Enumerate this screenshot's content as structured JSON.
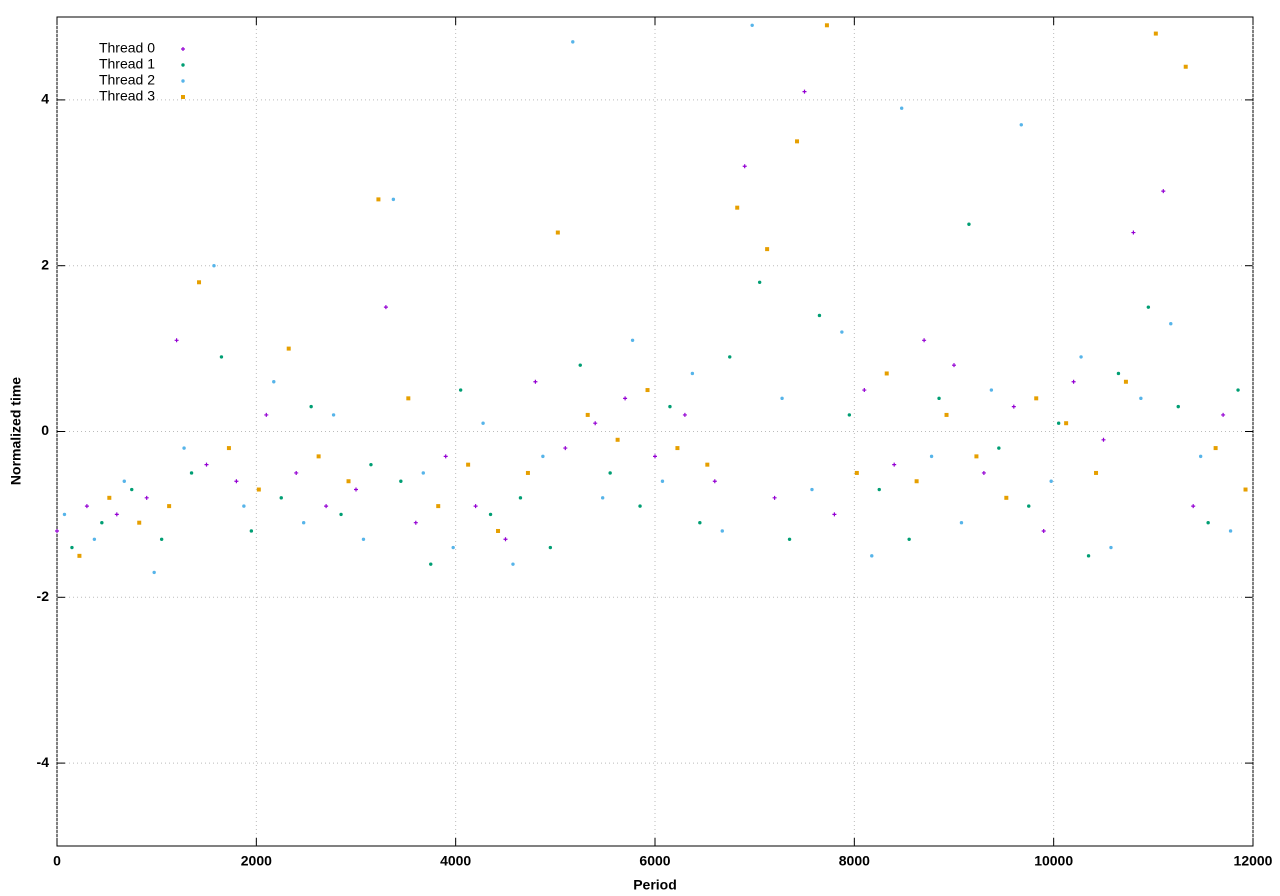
{
  "chart_data": {
    "type": "scatter",
    "x_label": "Period",
    "y_label": "Normalized time",
    "xlim": [
      0,
      12000
    ],
    "ylim": [
      -5,
      5
    ],
    "xticks": [
      0,
      2000,
      4000,
      6000,
      8000,
      10000,
      12000
    ],
    "yticks": [
      -4,
      -2,
      0,
      2,
      4
    ],
    "grid": true,
    "legend": "top-left",
    "series": [
      {
        "name": "Thread 0",
        "color": "#9400d3",
        "marker": "plus",
        "x": [
          0,
          300,
          600,
          900,
          1200,
          1500,
          1800,
          2100,
          2400,
          2700,
          3000,
          3300,
          3600,
          3900,
          4200,
          4500,
          4800,
          5100,
          5400,
          5700,
          6000,
          6300,
          6600,
          6900,
          7200,
          7500,
          7800,
          8100,
          8400,
          8700,
          9000,
          9300,
          9600,
          9900,
          10200,
          10500,
          10800,
          11100,
          11400,
          11700
        ],
        "values": [
          -1.2,
          -0.9,
          -1.0,
          -0.8,
          1.1,
          -0.4,
          -0.6,
          0.2,
          -0.5,
          -0.9,
          -0.7,
          1.5,
          -1.1,
          -0.3,
          -0.9,
          -1.3,
          0.6,
          -0.2,
          0.1,
          0.4,
          -0.3,
          0.2,
          -0.6,
          3.2,
          -0.8,
          4.1,
          -1.0,
          0.5,
          -0.4,
          1.1,
          0.8,
          -0.5,
          0.3,
          -1.2,
          0.6,
          -0.1,
          2.4,
          2.9,
          -0.9,
          0.2
        ]
      },
      {
        "name": "Thread 1",
        "color": "#009e73",
        "marker": "circle",
        "x": [
          150,
          450,
          750,
          1050,
          1350,
          1650,
          1950,
          2250,
          2550,
          2850,
          3150,
          3450,
          3750,
          4050,
          4350,
          4650,
          4950,
          5250,
          5550,
          5850,
          6150,
          6450,
          6750,
          7050,
          7350,
          7650,
          7950,
          8250,
          8550,
          8850,
          9150,
          9450,
          9750,
          10050,
          10350,
          10650,
          10950,
          11250,
          11550,
          11850
        ],
        "values": [
          -1.4,
          -1.1,
          -0.7,
          -1.3,
          -0.5,
          0.9,
          -1.2,
          -0.8,
          0.3,
          -1.0,
          -0.4,
          -0.6,
          -1.6,
          0.5,
          -1.0,
          -0.8,
          -1.4,
          0.8,
          -0.5,
          -0.9,
          0.3,
          -1.1,
          0.9,
          1.8,
          -1.3,
          1.4,
          0.2,
          -0.7,
          -1.3,
          0.4,
          2.5,
          -0.2,
          -0.9,
          0.1,
          -1.5,
          0.7,
          1.5,
          0.3,
          -1.1,
          0.5
        ]
      },
      {
        "name": "Thread 2",
        "color": "#56b4e9",
        "marker": "circle",
        "x": [
          75,
          375,
          675,
          975,
          1275,
          1575,
          1875,
          2175,
          2475,
          2775,
          3075,
          3375,
          3675,
          3975,
          4275,
          4575,
          4875,
          5175,
          5475,
          5775,
          6075,
          6375,
          6675,
          6975,
          7275,
          7575,
          7875,
          8175,
          8475,
          8775,
          9075,
          9375,
          9675,
          9975,
          10275,
          10575,
          10875,
          11175,
          11475,
          11775
        ],
        "values": [
          -1.0,
          -1.3,
          -0.6,
          -1.7,
          -0.2,
          2.0,
          -0.9,
          0.6,
          -1.1,
          0.2,
          -1.3,
          2.8,
          -0.5,
          -1.4,
          0.1,
          -1.6,
          -0.3,
          4.7,
          -0.8,
          1.1,
          -0.6,
          0.7,
          -1.2,
          4.9,
          0.4,
          -0.7,
          1.2,
          -1.5,
          3.9,
          -0.3,
          -1.1,
          0.5,
          3.7,
          -0.6,
          0.9,
          -1.4,
          0.4,
          1.3,
          -0.3,
          -1.2
        ]
      },
      {
        "name": "Thread 3",
        "color": "#e69f00",
        "marker": "square",
        "x": [
          225,
          525,
          825,
          1125,
          1425,
          1725,
          2025,
          2325,
          2625,
          2925,
          3225,
          3525,
          3825,
          4125,
          4425,
          4725,
          5025,
          5325,
          5625,
          5925,
          6225,
          6525,
          6825,
          7125,
          7425,
          7725,
          8025,
          8325,
          8625,
          8925,
          9225,
          9525,
          9825,
          10125,
          10425,
          10725,
          11025,
          11325,
          11625,
          11925
        ],
        "values": [
          -1.5,
          -0.8,
          -1.1,
          -0.9,
          1.8,
          -0.2,
          -0.7,
          1.0,
          -0.3,
          -0.6,
          2.8,
          0.4,
          -0.9,
          -0.4,
          -1.2,
          -0.5,
          2.4,
          0.2,
          -0.1,
          0.5,
          -0.2,
          -0.4,
          2.7,
          2.2,
          3.5,
          4.9,
          -0.5,
          0.7,
          -0.6,
          0.2,
          -0.3,
          -0.8,
          0.4,
          0.1,
          -0.5,
          0.6,
          4.8,
          4.4,
          -0.2,
          -0.7
        ]
      }
    ]
  }
}
